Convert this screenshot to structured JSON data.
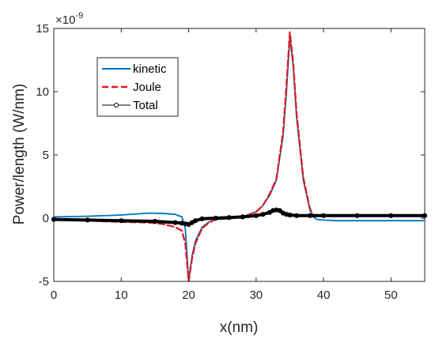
{
  "chart_data": {
    "type": "line",
    "xlabel": "x(nm)",
    "ylabel": "Power/length (W/nm)",
    "y_exponent_label": "×10",
    "y_exponent_power": "-9",
    "xlim": [
      0,
      55
    ],
    "ylim": [
      -5,
      15
    ],
    "x_ticks": [
      0,
      10,
      20,
      30,
      40,
      50
    ],
    "y_ticks": [
      -5,
      0,
      5,
      10,
      15
    ],
    "x_tick_labels": [
      "0",
      "10",
      "20",
      "30",
      "40",
      "50"
    ],
    "y_tick_labels": [
      "-5",
      "0",
      "5",
      "10",
      "15"
    ],
    "grid": false,
    "legend_position": "top-left",
    "series": [
      {
        "name": "kinetic",
        "color": "#0072BD",
        "style": "solid",
        "x": [
          0,
          5,
          10,
          14,
          16,
          18,
          19,
          19.5,
          20,
          20.5,
          21,
          22,
          23,
          24,
          26,
          28,
          30,
          31,
          32,
          33,
          34,
          34.5,
          35,
          35.5,
          36,
          37,
          38,
          38.5,
          39,
          40,
          42,
          45,
          50,
          55
        ],
        "values": [
          0.1,
          0.15,
          0.25,
          0.4,
          0.38,
          0.3,
          0.1,
          -0.8,
          -4.9,
          -3.0,
          -1.8,
          -0.7,
          -0.3,
          -0.1,
          -0.05,
          0.1,
          0.5,
          1.0,
          1.8,
          3.0,
          6.5,
          10.0,
          14.3,
          12.0,
          8.0,
          3.0,
          0.6,
          0.1,
          -0.1,
          -0.15,
          -0.2,
          -0.2,
          -0.2,
          -0.2
        ]
      },
      {
        "name": "Joule",
        "color": "#D95319",
        "style": "dashed",
        "x": [
          0,
          5,
          10,
          14,
          16,
          18,
          19,
          19.5,
          20,
          20.5,
          21,
          22,
          23,
          24,
          26,
          28,
          30,
          31,
          32,
          33,
          34,
          34.5,
          35,
          35.5,
          36,
          37,
          38,
          38.5,
          39,
          40,
          42,
          45,
          50,
          55
        ],
        "values": [
          -0.1,
          -0.2,
          -0.3,
          -0.35,
          -0.45,
          -0.7,
          -1.0,
          -2.0,
          -5.0,
          -3.2,
          -2.0,
          -0.8,
          -0.35,
          -0.1,
          0.0,
          0.1,
          0.5,
          1.0,
          1.9,
          3.1,
          6.8,
          10.5,
          14.7,
          12.3,
          8.3,
          3.2,
          0.7,
          0.25,
          0.2,
          0.2,
          0.2,
          0.2,
          0.2,
          0.2
        ]
      },
      {
        "name": "Total",
        "color": "#000000",
        "style": "solid-markers",
        "x": [
          0,
          5,
          10,
          15,
          18,
          19,
          19.5,
          20,
          20.5,
          21,
          22,
          24,
          26,
          28,
          30,
          31,
          32,
          32.5,
          33,
          33.5,
          34,
          34.5,
          35,
          36,
          38,
          40,
          45,
          50,
          55
        ],
        "values": [
          -0.1,
          -0.15,
          -0.2,
          -0.25,
          -0.35,
          -0.4,
          -0.45,
          -0.5,
          -0.35,
          -0.2,
          -0.05,
          0.0,
          0.05,
          0.1,
          0.2,
          0.3,
          0.45,
          0.6,
          0.65,
          0.6,
          0.4,
          0.3,
          0.25,
          0.2,
          0.2,
          0.2,
          0.2,
          0.2,
          0.2
        ]
      }
    ]
  }
}
